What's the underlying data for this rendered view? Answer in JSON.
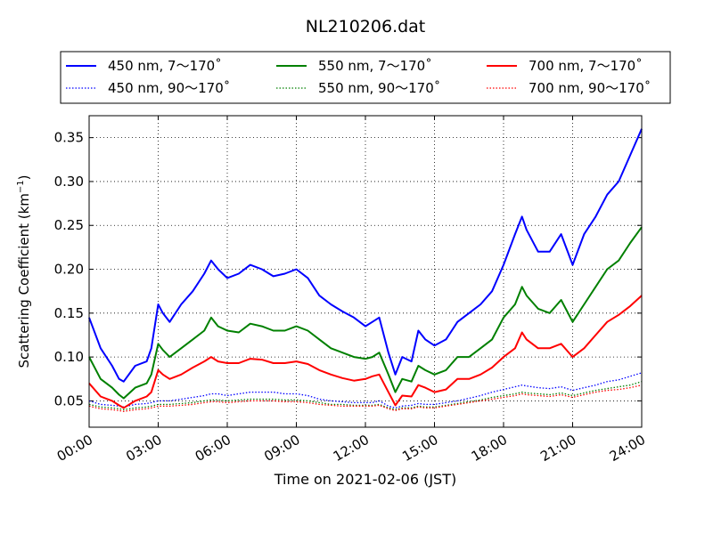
{
  "chart_data": {
    "type": "line",
    "title": "NL210206.dat",
    "xlabel": "Time on 2021-02-06 (JST)",
    "ylabel_main": "Scattering Coefficient (km",
    "ylabel_sup": "−1",
    "ylabel_close": ")",
    "xlim": [
      0,
      24
    ],
    "ylim": [
      0.02,
      0.375
    ],
    "x_ticks": [
      0,
      3,
      6,
      9,
      12,
      15,
      18,
      21,
      24
    ],
    "x_tick_labels": [
      "00:00",
      "03:00",
      "06:00",
      "09:00",
      "12:00",
      "15:00",
      "18:00",
      "21:00",
      "24:00"
    ],
    "y_ticks": [
      0.05,
      0.1,
      0.15,
      0.2,
      0.25,
      0.3,
      0.35
    ],
    "y_tick_labels": [
      "0.05",
      "0.10",
      "0.15",
      "0.20",
      "0.25",
      "0.30",
      "0.35"
    ],
    "grid": true,
    "legend_position": "top",
    "x": [
      0,
      0.5,
      1,
      1.3,
      1.5,
      2,
      2.5,
      2.7,
      3,
      3.2,
      3.5,
      4,
      4.5,
      5,
      5.3,
      5.6,
      6,
      6.5,
      7,
      7.5,
      8,
      8.5,
      9,
      9.5,
      10,
      10.5,
      11,
      11.5,
      12,
      12.3,
      12.6,
      13,
      13.3,
      13.6,
      14,
      14.3,
      14.6,
      15,
      15.5,
      16,
      16.5,
      17,
      17.5,
      18,
      18.5,
      18.8,
      19,
      19.5,
      20,
      20.5,
      21,
      21.5,
      22,
      22.5,
      23,
      23.5,
      24
    ],
    "series": [
      {
        "name": "450 nm, 7～170˚",
        "color": "#0000ff",
        "style": "solid",
        "values": [
          0.145,
          0.11,
          0.09,
          0.075,
          0.072,
          0.09,
          0.095,
          0.11,
          0.16,
          0.15,
          0.14,
          0.16,
          0.175,
          0.195,
          0.21,
          0.2,
          0.19,
          0.195,
          0.205,
          0.2,
          0.192,
          0.195,
          0.2,
          0.19,
          0.17,
          0.16,
          0.152,
          0.145,
          0.135,
          0.14,
          0.145,
          0.105,
          0.08,
          0.1,
          0.095,
          0.13,
          0.12,
          0.113,
          0.12,
          0.14,
          0.15,
          0.16,
          0.175,
          0.205,
          0.24,
          0.26,
          0.245,
          0.22,
          0.22,
          0.24,
          0.205,
          0.24,
          0.26,
          0.285,
          0.3,
          0.33,
          0.36
        ]
      },
      {
        "name": "550 nm, 7～170˚",
        "color": "#008000",
        "style": "solid",
        "values": [
          0.1,
          0.075,
          0.065,
          0.057,
          0.053,
          0.065,
          0.07,
          0.08,
          0.115,
          0.108,
          0.1,
          0.11,
          0.12,
          0.13,
          0.145,
          0.135,
          0.13,
          0.128,
          0.138,
          0.135,
          0.13,
          0.13,
          0.135,
          0.13,
          0.12,
          0.11,
          0.105,
          0.1,
          0.098,
          0.1,
          0.105,
          0.08,
          0.06,
          0.075,
          0.072,
          0.09,
          0.085,
          0.08,
          0.085,
          0.1,
          0.1,
          0.11,
          0.12,
          0.145,
          0.16,
          0.18,
          0.17,
          0.155,
          0.15,
          0.165,
          0.14,
          0.16,
          0.18,
          0.2,
          0.21,
          0.23,
          0.248
        ]
      },
      {
        "name": "700 nm, 7～170˚",
        "color": "#ff0000",
        "style": "solid",
        "values": [
          0.07,
          0.055,
          0.05,
          0.045,
          0.042,
          0.05,
          0.055,
          0.06,
          0.085,
          0.08,
          0.075,
          0.08,
          0.088,
          0.095,
          0.1,
          0.095,
          0.093,
          0.093,
          0.098,
          0.097,
          0.093,
          0.093,
          0.095,
          0.092,
          0.085,
          0.08,
          0.076,
          0.073,
          0.075,
          0.078,
          0.08,
          0.06,
          0.045,
          0.056,
          0.055,
          0.068,
          0.065,
          0.06,
          0.063,
          0.075,
          0.075,
          0.08,
          0.088,
          0.1,
          0.11,
          0.128,
          0.12,
          0.11,
          0.11,
          0.115,
          0.1,
          0.11,
          0.125,
          0.14,
          0.148,
          0.158,
          0.17
        ]
      },
      {
        "name": "450 nm, 90～170˚",
        "color": "#0000ff",
        "style": "dotted",
        "values": [
          0.05,
          0.046,
          0.045,
          0.044,
          0.043,
          0.046,
          0.047,
          0.048,
          0.05,
          0.05,
          0.05,
          0.052,
          0.054,
          0.056,
          0.058,
          0.058,
          0.056,
          0.058,
          0.06,
          0.06,
          0.06,
          0.058,
          0.058,
          0.056,
          0.052,
          0.05,
          0.049,
          0.048,
          0.048,
          0.048,
          0.05,
          0.044,
          0.042,
          0.044,
          0.045,
          0.047,
          0.046,
          0.046,
          0.048,
          0.05,
          0.053,
          0.056,
          0.06,
          0.063,
          0.066,
          0.068,
          0.067,
          0.065,
          0.064,
          0.066,
          0.062,
          0.065,
          0.068,
          0.072,
          0.074,
          0.078,
          0.082
        ]
      },
      {
        "name": "550 nm, 90～170˚",
        "color": "#008000",
        "style": "dotted",
        "values": [
          0.046,
          0.043,
          0.042,
          0.041,
          0.04,
          0.042,
          0.043,
          0.044,
          0.046,
          0.046,
          0.046,
          0.047,
          0.048,
          0.05,
          0.051,
          0.051,
          0.05,
          0.051,
          0.052,
          0.052,
          0.052,
          0.051,
          0.051,
          0.05,
          0.048,
          0.046,
          0.046,
          0.045,
          0.045,
          0.045,
          0.046,
          0.042,
          0.04,
          0.042,
          0.042,
          0.044,
          0.043,
          0.043,
          0.045,
          0.047,
          0.049,
          0.051,
          0.054,
          0.056,
          0.058,
          0.06,
          0.059,
          0.058,
          0.057,
          0.059,
          0.056,
          0.059,
          0.062,
          0.064,
          0.066,
          0.068,
          0.072
        ]
      },
      {
        "name": "700 nm, 90～170˚",
        "color": "#ff0000",
        "style": "dotted",
        "values": [
          0.044,
          0.041,
          0.04,
          0.039,
          0.038,
          0.04,
          0.041,
          0.042,
          0.044,
          0.044,
          0.044,
          0.045,
          0.046,
          0.048,
          0.049,
          0.049,
          0.048,
          0.049,
          0.05,
          0.05,
          0.05,
          0.049,
          0.049,
          0.048,
          0.046,
          0.045,
          0.044,
          0.044,
          0.044,
          0.044,
          0.045,
          0.041,
          0.039,
          0.041,
          0.041,
          0.043,
          0.042,
          0.042,
          0.044,
          0.046,
          0.048,
          0.05,
          0.052,
          0.054,
          0.056,
          0.058,
          0.057,
          0.056,
          0.055,
          0.057,
          0.054,
          0.057,
          0.06,
          0.062,
          0.063,
          0.065,
          0.068
        ]
      }
    ]
  }
}
